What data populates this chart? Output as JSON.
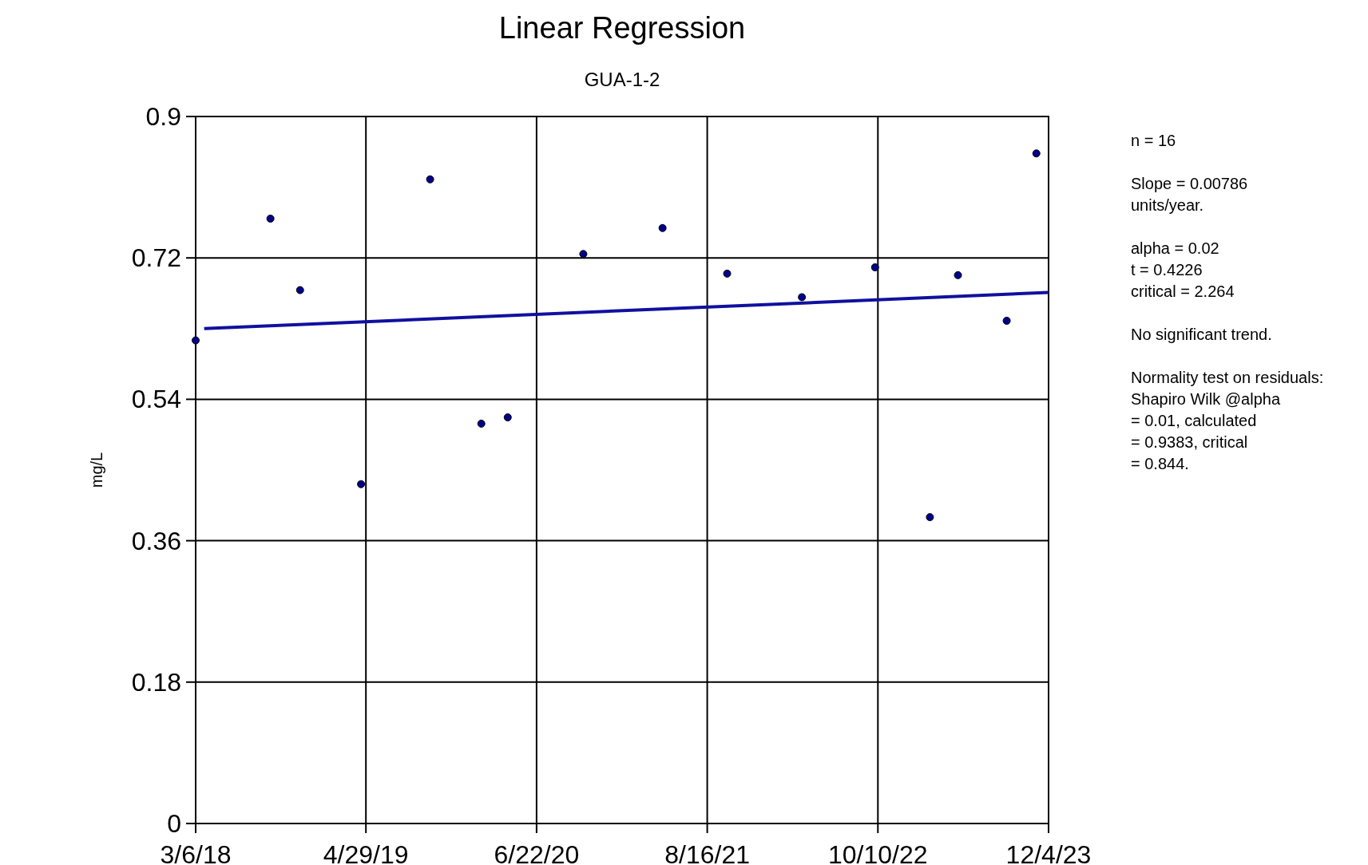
{
  "chart_data": {
    "type": "scatter",
    "title": "Linear Regression",
    "subtitle": "GUA-1-2",
    "ylabel": "mg/L",
    "xlim": [
      "2018-03-06",
      "2023-12-04"
    ],
    "xticks": [
      {
        "value": "2018-03-06",
        "label": "3/6/18"
      },
      {
        "value": "2019-04-29",
        "label": "4/29/19"
      },
      {
        "value": "2020-06-22",
        "label": "6/22/20"
      },
      {
        "value": "2021-08-16",
        "label": "8/16/21"
      },
      {
        "value": "2022-10-10",
        "label": "10/10/22"
      },
      {
        "value": "2023-12-04",
        "label": "12/4/23"
      }
    ],
    "ylim": [
      0,
      0.9
    ],
    "yticks": [
      0,
      0.18,
      0.36,
      0.54,
      0.72,
      0.9
    ],
    "grid": true,
    "series": [
      {
        "marker": "circle",
        "color": "#00008b",
        "x": [
          "2018-03-06",
          "2018-09-06",
          "2018-11-18",
          "2019-04-17",
          "2019-10-04",
          "2020-02-07",
          "2020-04-12",
          "2020-10-15",
          "2021-04-28",
          "2021-10-04",
          "2022-04-06",
          "2022-10-03",
          "2023-02-15",
          "2023-04-25",
          "2023-08-23",
          "2023-11-04"
        ],
        "values": [
          0.615,
          0.77,
          0.679,
          0.432,
          0.82,
          0.509,
          0.517,
          0.725,
          0.758,
          0.7,
          0.67,
          0.708,
          0.39,
          0.698,
          0.64,
          0.853
        ]
      },
      {
        "type": "line",
        "color": "#1010a0",
        "x": [
          "2018-03-27",
          "2023-12-04"
        ],
        "values": [
          0.63,
          0.676
        ]
      }
    ],
    "annotations": [
      "n = 16",
      "Slope = 0.00786\nunits/year.",
      "alpha = 0.02\nt = 0.4226\ncritical = 2.264",
      "No significant trend.",
      "Normality test on residuals:\nShapiro Wilk @alpha\n= 0.01, calculated\n= 0.9383, critical\n= 0.844."
    ]
  }
}
